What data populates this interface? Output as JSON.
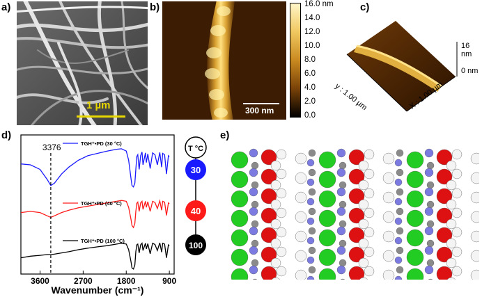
{
  "panels": {
    "a": {
      "label": "a)",
      "scalebar": "1 µm",
      "colors": {
        "scalebar": "#e8d800"
      }
    },
    "b": {
      "label": "b)",
      "scalebar": "300 nm",
      "colorbar_ticks": [
        "16.0 nm",
        "14.0",
        "12.0",
        "10.0",
        "8.0",
        "6.0",
        "4.0",
        "2.0",
        "0.0"
      ]
    },
    "c": {
      "label": "c)",
      "z_max": "16 nm",
      "z_min": "0 nm",
      "y_axis": "y : 1.00 µm",
      "x_axis": "X : 1.00 µm"
    },
    "d": {
      "label": "d)",
      "peak_label": "3376",
      "temperature_header": "T °C",
      "temperatures": [
        "30",
        "40",
        "100"
      ],
      "colors": {
        "t30": "#1a1aff",
        "t40": "#ff1a1a",
        "t100": "#000000"
      }
    },
    "e": {
      "label": "e)",
      "colors": {
        "chlorine": "#22cc22",
        "oxygen": "#dd1111",
        "hydrogen": "#f4f4f4",
        "nitrogen": "#7a7ae0",
        "carbon": "#8a8a8a"
      }
    }
  },
  "chart_data": {
    "type": "line",
    "xlabel": "Wavenumber (cm⁻¹)",
    "x_ticks": [
      3600,
      2700,
      1800,
      900
    ],
    "xlim": [
      4000,
      800
    ],
    "x_reversed": true,
    "y_ticks_shown": false,
    "annotation": {
      "x": 3376,
      "label": "3376",
      "style": "dashed-vertical"
    },
    "series": [
      {
        "name": "TGH⁺•PD (30 °C)",
        "color": "#1a1aff",
        "x": [
          4000,
          3800,
          3600,
          3450,
          3376,
          3300,
          3150,
          3000,
          2800,
          2600,
          2400,
          2200,
          2000,
          1900,
          1800,
          1750,
          1700,
          1680,
          1650,
          1620,
          1600,
          1580,
          1560,
          1530,
          1500,
          1470,
          1450,
          1400,
          1380,
          1350,
          1300,
          1250,
          1200,
          1150,
          1100,
          1060,
          1040,
          1000,
          960,
          920,
          900
        ],
        "y": [
          0.52,
          0.5,
          0.4,
          0.18,
          0.05,
          0.1,
          0.3,
          0.45,
          0.6,
          0.7,
          0.75,
          0.8,
          0.84,
          0.85,
          0.8,
          0.6,
          0.2,
          0.05,
          0.02,
          0.1,
          0.4,
          0.68,
          0.72,
          0.4,
          0.7,
          0.78,
          0.5,
          0.76,
          0.55,
          0.74,
          0.42,
          0.76,
          0.72,
          0.5,
          0.77,
          0.45,
          0.75,
          0.72,
          0.3,
          0.7,
          0.68
        ]
      },
      {
        "name": "TGH⁺•PD (40 °C)",
        "color": "#ff1a1a",
        "x": [
          4000,
          3800,
          3600,
          3450,
          3376,
          3300,
          3150,
          3000,
          2800,
          2600,
          2400,
          2200,
          2000,
          1900,
          1800,
          1750,
          1700,
          1680,
          1650,
          1620,
          1600,
          1580,
          1560,
          1530,
          1500,
          1470,
          1450,
          1400,
          1380,
          1350,
          1300,
          1250,
          1200,
          1150,
          1100,
          1060,
          1040,
          1000,
          960,
          920,
          900
        ],
        "y": [
          0.42,
          0.45,
          0.42,
          0.34,
          0.3,
          0.34,
          0.42,
          0.48,
          0.54,
          0.58,
          0.62,
          0.66,
          0.7,
          0.72,
          0.7,
          0.55,
          0.25,
          0.1,
          0.05,
          0.15,
          0.45,
          0.65,
          0.68,
          0.45,
          0.66,
          0.7,
          0.5,
          0.7,
          0.55,
          0.69,
          0.45,
          0.7,
          0.67,
          0.52,
          0.71,
          0.48,
          0.7,
          0.68,
          0.35,
          0.66,
          0.64
        ]
      },
      {
        "name": "TGH⁺•PD (100 °C)",
        "color": "#000000",
        "x": [
          4000,
          3800,
          3600,
          3450,
          3376,
          3300,
          3150,
          3000,
          2800,
          2600,
          2400,
          2200,
          2000,
          1900,
          1800,
          1750,
          1700,
          1680,
          1650,
          1620,
          1600,
          1580,
          1560,
          1530,
          1500,
          1470,
          1450,
          1400,
          1380,
          1350,
          1300,
          1250,
          1200,
          1150,
          1100,
          1060,
          1040,
          1000,
          960,
          920,
          900
        ],
        "y": [
          0.3,
          0.34,
          0.36,
          0.38,
          0.38,
          0.39,
          0.42,
          0.45,
          0.5,
          0.54,
          0.57,
          0.6,
          0.64,
          0.66,
          0.64,
          0.5,
          0.2,
          0.05,
          0.02,
          0.12,
          0.45,
          0.62,
          0.64,
          0.42,
          0.62,
          0.66,
          0.48,
          0.66,
          0.52,
          0.65,
          0.4,
          0.66,
          0.63,
          0.48,
          0.67,
          0.44,
          0.66,
          0.64,
          0.3,
          0.62,
          0.6
        ]
      }
    ]
  }
}
